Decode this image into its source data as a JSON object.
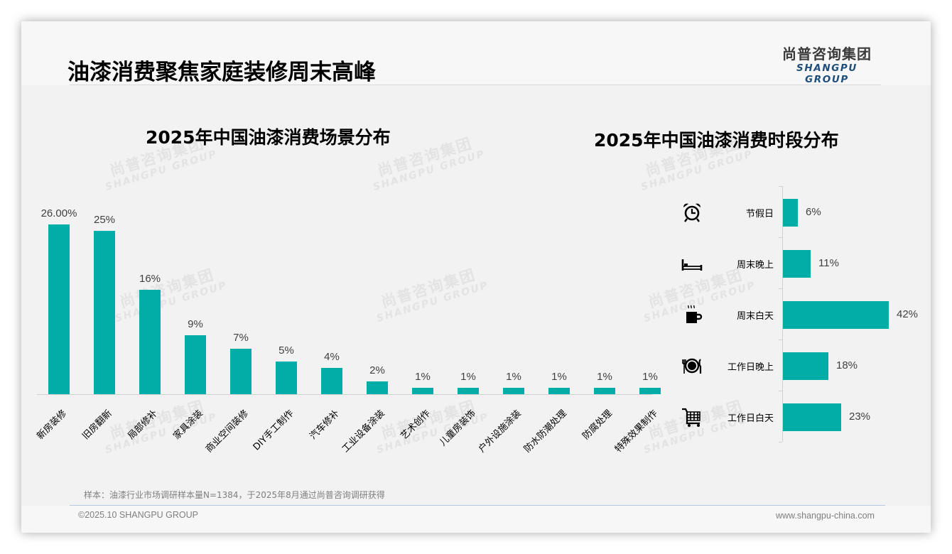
{
  "header": {
    "title": "油漆消费聚焦家庭装修周末高峰",
    "logo_cn": "尚普咨询集团",
    "logo_en": "SHANGPU GROUP"
  },
  "watermark": {
    "cn": "尚普咨询集团",
    "en": "SHANGPU GROUP"
  },
  "colors": {
    "bar": "#00ada7",
    "logo_en": "#1f4e79",
    "text": "#000000",
    "value_text": "#404040",
    "muted_text": "#7f7f7f"
  },
  "chart_data": [
    {
      "type": "bar",
      "title": "2025年中国油漆消费场景分布",
      "xlabel": "",
      "ylabel": "",
      "categories": [
        "新房装修",
        "旧房翻新",
        "局部修补",
        "家具涂装",
        "商业空间装修",
        "DIY手工制作",
        "汽车修补",
        "工业设备涂装",
        "艺术创作",
        "儿童房装饰",
        "户外设施涂装",
        "防水防潮处理",
        "防腐处理",
        "特殊效果制作"
      ],
      "values": [
        26,
        25,
        16,
        9,
        7,
        5,
        4,
        2,
        1,
        1,
        1,
        1,
        1,
        1
      ],
      "value_labels": [
        "26.00%",
        "25%",
        "16%",
        "9%",
        "7%",
        "5%",
        "4%",
        "2%",
        "1%",
        "1%",
        "1%",
        "1%",
        "1%",
        "1%"
      ],
      "unit": "%",
      "ylim": [
        0,
        26
      ],
      "grid": false,
      "legend": "none"
    },
    {
      "type": "bar",
      "orientation": "horizontal",
      "title": "2025年中国油漆消费时段分布",
      "xlabel": "",
      "ylabel": "",
      "categories": [
        "节假日",
        "周末晚上",
        "周末白天",
        "工作日晚上",
        "工作日白天"
      ],
      "icons": [
        "alarm-clock-icon",
        "bed-icon",
        "coffee-mug-icon",
        "plate-cutlery-icon",
        "shopping-cart-icon"
      ],
      "values": [
        6,
        11,
        42,
        18,
        23
      ],
      "value_labels": [
        "6%",
        "11%",
        "42%",
        "18%",
        "23%"
      ],
      "unit": "%",
      "xlim": [
        0,
        42
      ],
      "grid": false,
      "legend": "none"
    }
  ],
  "footer": {
    "sample_note": "样本：油漆行业市场调研样本量N=1384，于2025年8月通过尚普咨询调研获得",
    "copyright": "©2025.10 SHANGPU GROUP",
    "website": "www.shangpu-china.com"
  }
}
